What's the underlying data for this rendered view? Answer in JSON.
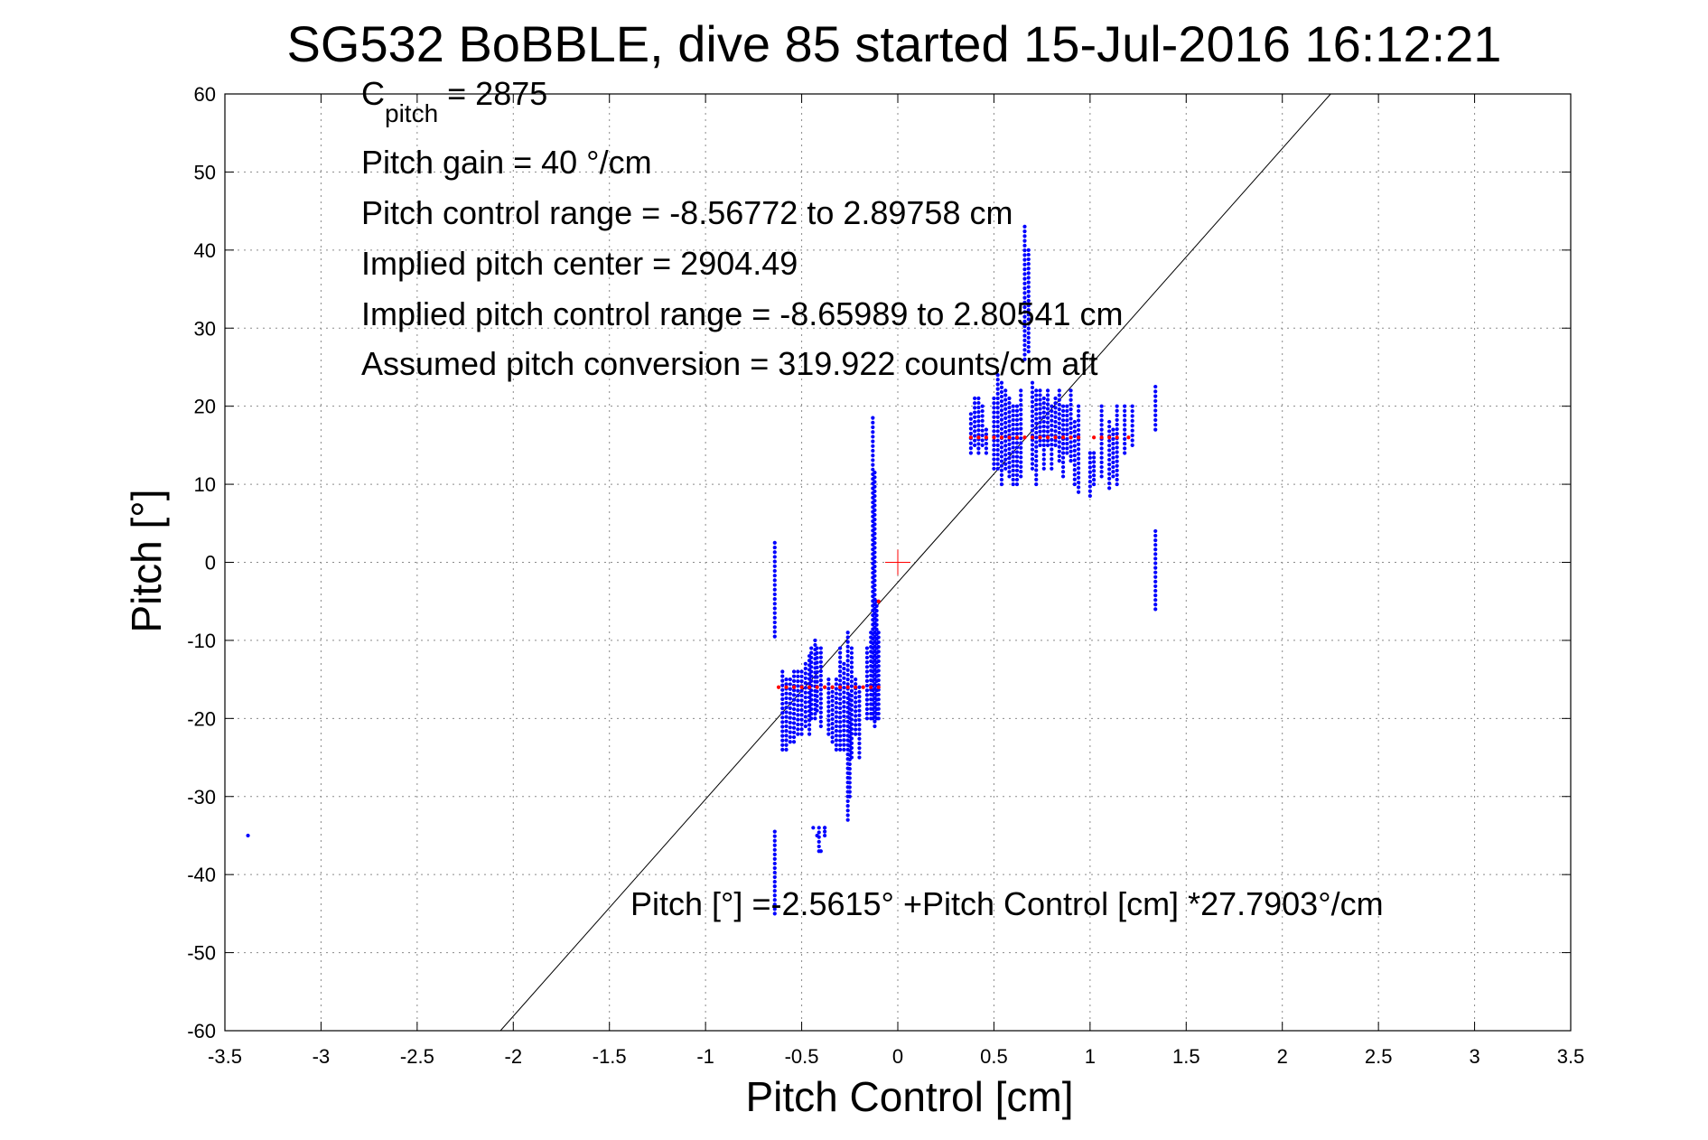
{
  "chart_data": {
    "type": "scatter",
    "title": "SG532 BoBBLE, dive 85 started 15-Jul-2016 16:12:21",
    "xlabel": "Pitch Control [cm]",
    "ylabel": "Pitch [°]",
    "xlim": [
      -3.5,
      3.5
    ],
    "ylim": [
      -60,
      60
    ],
    "xticks": [
      -3.5,
      -3,
      -2.5,
      -2,
      -1.5,
      -1,
      -0.5,
      0,
      0.5,
      1,
      1.5,
      2,
      2.5,
      3,
      3.5
    ],
    "xtick_labels": [
      "-3.5",
      "-3",
      "-2.5",
      "-2",
      "-1.5",
      "-1",
      "-0.5",
      "0",
      "0.5",
      "1",
      "1.5",
      "2",
      "2.5",
      "3",
      "3.5"
    ],
    "yticks": [
      -60,
      -50,
      -40,
      -30,
      -20,
      -10,
      0,
      10,
      20,
      30,
      40,
      50,
      60
    ],
    "ytick_labels": [
      "-60",
      "-50",
      "-40",
      "-30",
      "-20",
      "-10",
      "0",
      "10",
      "20",
      "30",
      "40",
      "50",
      "60"
    ],
    "grid": true,
    "colors": {
      "observed": "#0000ff",
      "fit_line": "#000000",
      "red_points": "#ff0000",
      "center_marker": "#ff0000"
    },
    "annotations": {
      "cpitch_main": "C",
      "cpitch_sub": "pitch",
      "cpitch_value": " = 2875",
      "pitch_gain": "Pitch gain = 40 °/cm",
      "control_range": "Pitch control range = -8.56772 to 2.89758 cm",
      "implied_center": "Implied pitch center = 2904.49",
      "implied_range": "Implied pitch control range = -8.65989 to 2.80541 cm",
      "conversion": "Assumed pitch conversion = 319.922 counts/cm aft",
      "fit_equation": "Pitch [°] =-2.5615° +Pitch Control [cm] *27.7903°/cm"
    },
    "fit_line": {
      "intercept": -2.5615,
      "slope": 27.7903
    },
    "center_marker": {
      "x": 0,
      "y": 0
    },
    "observed_columns": [
      [
        -0.64,
        2.5,
        -9.5
      ],
      [
        -0.64,
        -34.5,
        -45
      ],
      [
        -0.6,
        -14,
        -24
      ],
      [
        -0.58,
        -15,
        -24
      ],
      [
        -0.56,
        -15,
        -23
      ],
      [
        -0.54,
        -14,
        -23
      ],
      [
        -0.52,
        -14,
        -22
      ],
      [
        -0.5,
        -14,
        -22
      ],
      [
        -0.48,
        -13,
        -21
      ],
      [
        -0.46,
        -12,
        -22
      ],
      [
        -0.45,
        -11,
        -20
      ],
      [
        -0.43,
        -10,
        -20
      ],
      [
        -0.42,
        -11,
        -19
      ],
      [
        -0.41,
        -34,
        -37
      ],
      [
        -0.4,
        -11,
        -21
      ],
      [
        -0.38,
        -34,
        -35
      ],
      [
        -0.36,
        -15,
        -22
      ],
      [
        -0.34,
        -16,
        -23
      ],
      [
        -0.32,
        -15,
        -24
      ],
      [
        -0.3,
        -11,
        -24
      ],
      [
        -0.28,
        -13,
        -24
      ],
      [
        -0.26,
        -9,
        -33
      ],
      [
        -0.25,
        -17,
        -30
      ],
      [
        -0.24,
        -11,
        -25
      ],
      [
        -0.22,
        -15,
        -22
      ],
      [
        -0.2,
        -16,
        -25
      ],
      [
        -0.16,
        -11,
        -20
      ],
      [
        -0.14,
        -9,
        -20
      ],
      [
        -0.13,
        18.5,
        -20
      ],
      [
        -0.12,
        11.5,
        -21
      ],
      [
        -0.11,
        -5,
        -20
      ],
      [
        -0.1,
        -9,
        -20
      ],
      [
        0.38,
        14,
        19
      ],
      [
        0.4,
        15,
        21
      ],
      [
        0.42,
        14,
        21
      ],
      [
        0.44,
        15,
        20
      ],
      [
        0.46,
        14,
        17
      ],
      [
        0.5,
        12,
        21
      ],
      [
        0.52,
        12,
        24
      ],
      [
        0.54,
        10,
        23
      ],
      [
        0.56,
        12,
        22
      ],
      [
        0.58,
        11,
        21
      ],
      [
        0.6,
        10,
        20
      ],
      [
        0.62,
        10,
        20
      ],
      [
        0.64,
        11,
        22
      ],
      [
        0.66,
        26,
        43
      ],
      [
        0.68,
        27,
        40
      ],
      [
        0.7,
        12,
        23
      ],
      [
        0.72,
        10,
        22
      ],
      [
        0.74,
        15,
        22
      ],
      [
        0.76,
        12,
        21
      ],
      [
        0.78,
        15,
        22
      ],
      [
        0.8,
        12,
        20
      ],
      [
        0.82,
        15,
        21
      ],
      [
        0.84,
        13,
        22
      ],
      [
        0.86,
        11,
        20
      ],
      [
        0.88,
        14,
        20
      ],
      [
        0.9,
        13,
        22
      ],
      [
        0.92,
        10,
        18
      ],
      [
        0.94,
        9,
        20
      ],
      [
        1.0,
        8.5,
        14
      ],
      [
        1.02,
        10,
        14
      ],
      [
        1.06,
        11,
        20
      ],
      [
        1.1,
        9.5,
        18
      ],
      [
        1.12,
        11,
        17
      ],
      [
        1.14,
        10,
        20
      ],
      [
        1.18,
        14,
        20
      ],
      [
        1.22,
        15,
        20
      ],
      [
        1.34,
        17,
        22.5
      ],
      [
        1.34,
        -6,
        4
      ]
    ],
    "observed_points": [
      [
        -3.38,
        -35
      ],
      [
        -0.42,
        -35
      ],
      [
        -0.4,
        -37
      ],
      [
        -0.44,
        -34
      ],
      [
        -0.38,
        -34
      ]
    ],
    "red_points": [
      [
        -0.62,
        -16
      ],
      [
        -0.58,
        -16
      ],
      [
        -0.54,
        -16
      ],
      [
        -0.5,
        -16
      ],
      [
        -0.46,
        -16
      ],
      [
        -0.42,
        -16
      ],
      [
        -0.38,
        -16
      ],
      [
        -0.34,
        -16
      ],
      [
        -0.3,
        -16
      ],
      [
        -0.26,
        -16
      ],
      [
        -0.22,
        -16
      ],
      [
        -0.18,
        -16
      ],
      [
        -0.14,
        -16
      ],
      [
        -0.1,
        -16
      ],
      [
        -0.1,
        -5
      ],
      [
        0.38,
        16
      ],
      [
        0.42,
        16
      ],
      [
        0.46,
        16
      ],
      [
        0.5,
        16
      ],
      [
        0.54,
        16
      ],
      [
        0.58,
        16
      ],
      [
        0.62,
        16
      ],
      [
        0.66,
        16
      ],
      [
        0.7,
        16
      ],
      [
        0.74,
        16
      ],
      [
        0.78,
        16
      ],
      [
        0.82,
        16
      ],
      [
        0.86,
        16
      ],
      [
        0.9,
        16
      ],
      [
        0.94,
        16
      ],
      [
        1.02,
        16
      ],
      [
        1.06,
        16
      ],
      [
        1.1,
        16
      ],
      [
        1.14,
        16
      ],
      [
        1.2,
        16
      ]
    ]
  }
}
